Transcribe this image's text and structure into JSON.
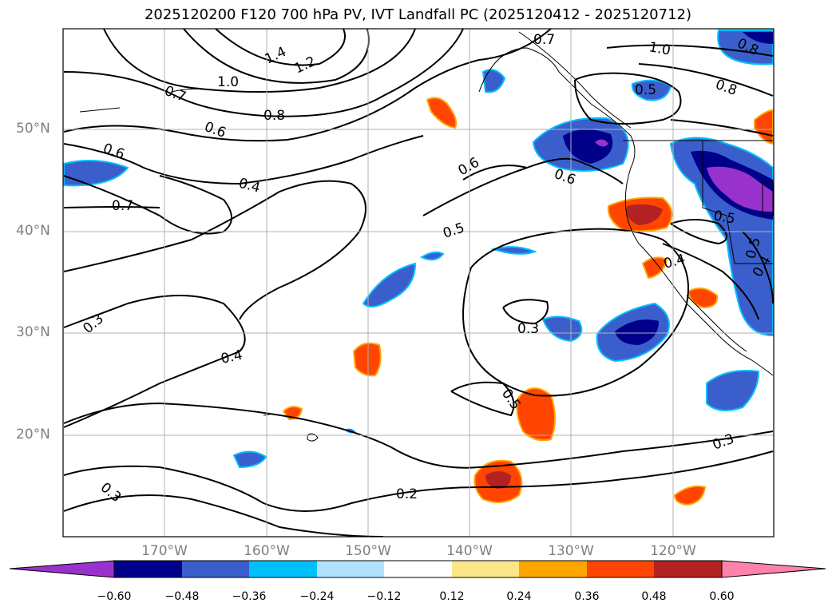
{
  "title": "2025120200 F120 700 hPa PV, IVT Landfall PC (2025120412 - 2025120712)",
  "map": {
    "region": "North Pacific / West Coast of North America",
    "lat_labels": [
      "50°N",
      "40°N",
      "30°N",
      "20°N"
    ],
    "lon_labels": [
      "170°W",
      "160°W",
      "150°W",
      "140°W",
      "130°W",
      "120°W"
    ],
    "contour_labels": [
      "1.4",
      "1.2",
      "1.0",
      "0.7",
      "0.8",
      "0.6",
      "0.6",
      "0.4",
      "0.7",
      "0.3",
      "0.4",
      "0.3",
      "0.2",
      "0.5",
      "0.6",
      "0.6",
      "0.5",
      "0.3",
      "0.5",
      "0.3",
      "0.7",
      "1.0",
      "0.8",
      "0.8",
      "0.5",
      "0.4",
      "0.5",
      "0.4"
    ],
    "colors": {
      "contour": "#000000",
      "grid": "#b0b0b0",
      "coast": "#000000"
    }
  },
  "colorbar": {
    "ticks": [
      "−0.60",
      "−0.48",
      "−0.36",
      "−0.24",
      "−0.12",
      "0.12",
      "0.24",
      "0.36",
      "0.48",
      "0.60"
    ],
    "levels": [
      -0.6,
      -0.48,
      -0.36,
      -0.24,
      -0.12,
      0.12,
      0.24,
      0.36,
      0.48,
      0.6
    ],
    "colors": [
      "#9932cc",
      "#00008b",
      "#3a5fcd",
      "#00bfff",
      "#b0e2ff",
      "#ffffff",
      "#fde68a",
      "#ffa500",
      "#ff4500",
      "#b22222",
      "#ff82ab"
    ]
  }
}
